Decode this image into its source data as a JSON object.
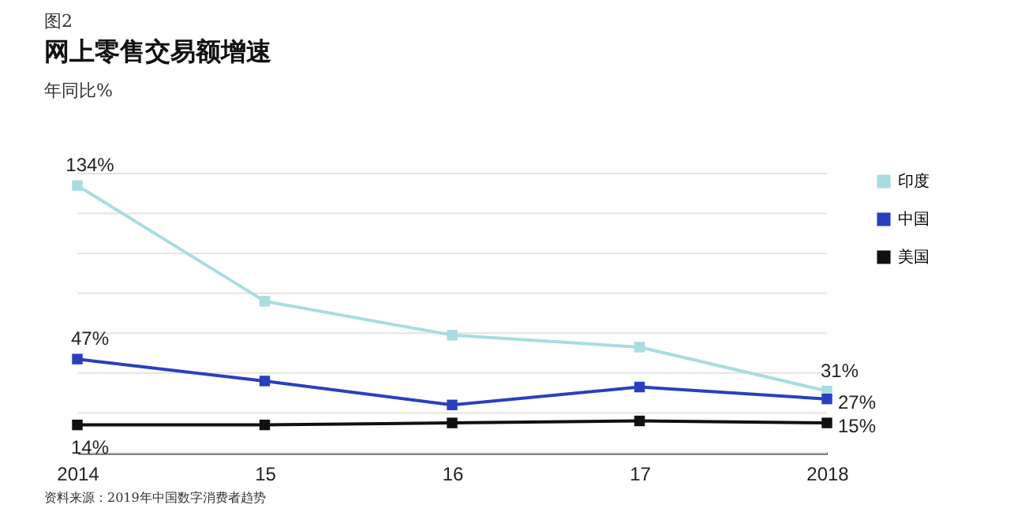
{
  "chart_data": {
    "type": "line",
    "title": "网上零售交易额增速",
    "ylabel": "年同比%",
    "annotations": [
      "图2",
      "资料来源：2019年中国数字消费者趋势"
    ],
    "categories": [
      "2014",
      "15",
      "16",
      "17",
      "2018"
    ],
    "series": [
      {
        "name": "印度",
        "color": "#a8dde0",
        "values": [
          134,
          76,
          59,
          53,
          31
        ],
        "value_labels": [
          "134%",
          null,
          null,
          null,
          "31%"
        ]
      },
      {
        "name": "中国",
        "color": "#2a3fbf",
        "values": [
          47,
          36,
          24,
          33,
          27
        ],
        "value_labels": [
          "47%",
          null,
          null,
          null,
          "27%"
        ]
      },
      {
        "name": "美国",
        "color": "#111111",
        "values": [
          14,
          14,
          15,
          16,
          15
        ],
        "value_labels": [
          "14%",
          null,
          null,
          null,
          "15%"
        ]
      }
    ],
    "yticks": [
      {
        "value": 0,
        "label": null
      },
      {
        "value": 20,
        "label": null
      },
      {
        "value": 40,
        "label": null
      },
      {
        "value": 60,
        "label": null
      },
      {
        "value": 80,
        "label": null
      },
      {
        "value": 100,
        "label": null
      },
      {
        "value": 120,
        "label": null
      },
      {
        "value": 140,
        "label": null
      }
    ],
    "grid": "y",
    "tick_labels": "x",
    "legend": "right",
    "marker": "square",
    "line_style": "solid"
  }
}
